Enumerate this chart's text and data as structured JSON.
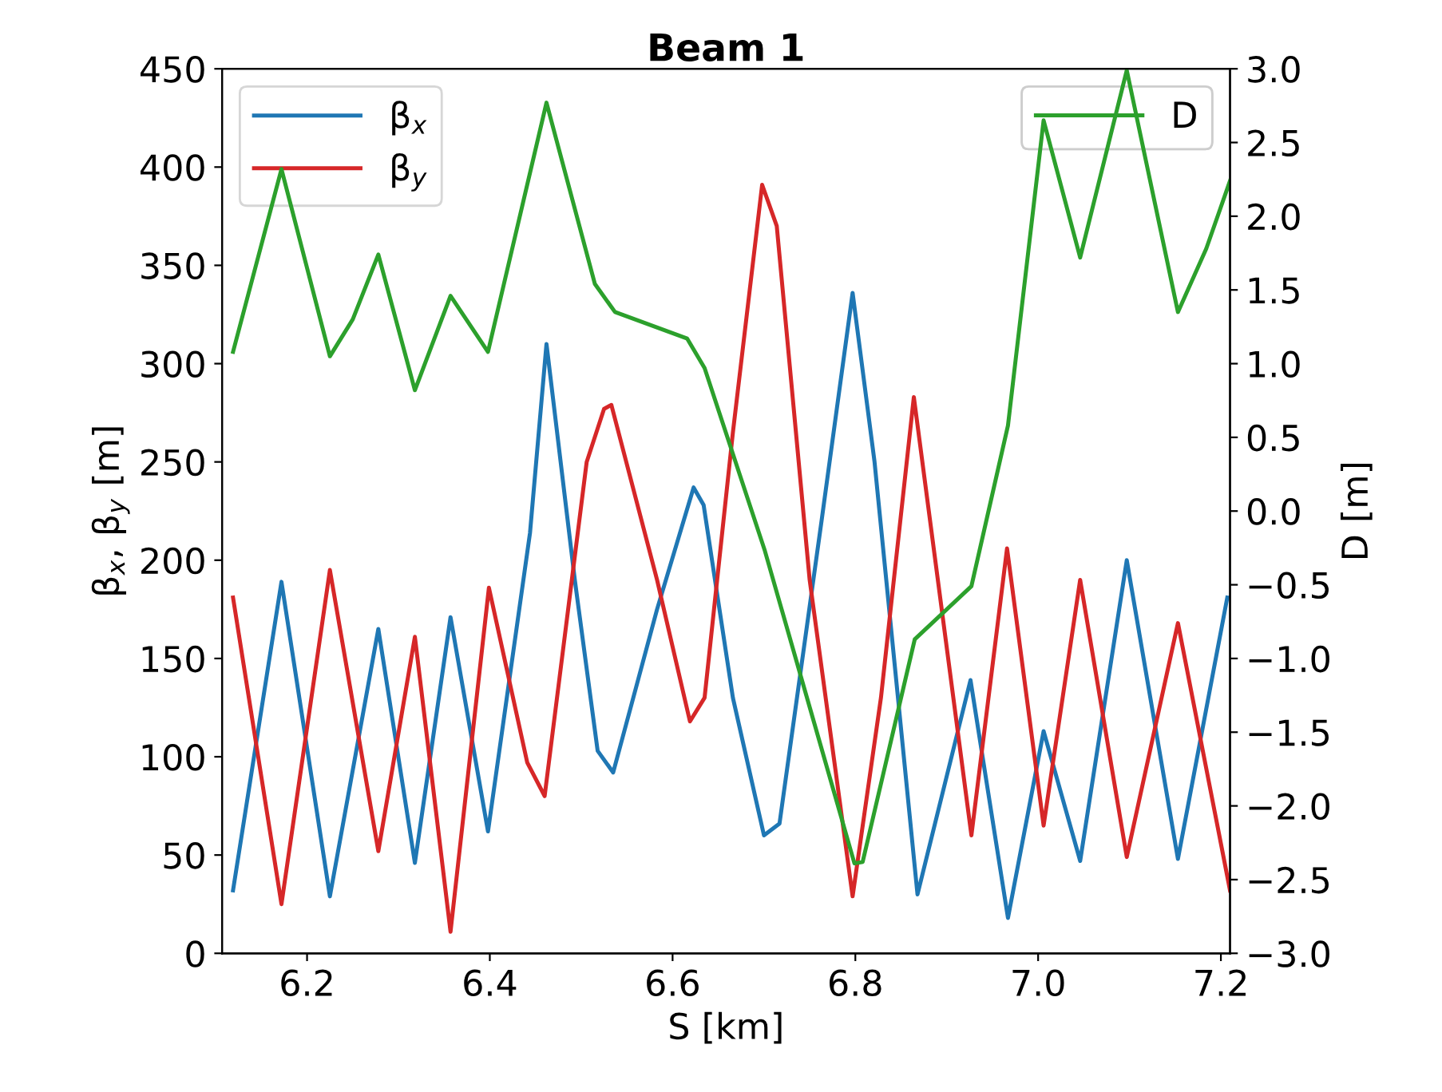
{
  "chart_data": {
    "type": "line",
    "title": "Beam 1",
    "xlabel": "S [km]",
    "ylabel": "β$_{x}$, β$_{y}$ [m]",
    "y2label": "D [m]",
    "xlim": [
      6.107,
      7.21
    ],
    "xticks": [
      {
        "value": 6.2,
        "label": "6.2"
      },
      {
        "value": 6.4,
        "label": "6.4"
      },
      {
        "value": 6.6,
        "label": "6.6"
      },
      {
        "value": 6.8,
        "label": "6.8"
      },
      {
        "value": 7.0,
        "label": "7.0"
      },
      {
        "value": 7.2,
        "label": "7.2"
      }
    ],
    "ylim": [
      0,
      450
    ],
    "yticks": [
      0,
      50,
      100,
      150,
      200,
      250,
      300,
      350,
      400,
      450
    ],
    "y2lim": [
      -3,
      3
    ],
    "y2ticks": [
      {
        "value": -3,
        "label": "−3.0"
      },
      {
        "value": -2.5,
        "label": "−2.5"
      },
      {
        "value": -2,
        "label": "−2.0"
      },
      {
        "value": -1.5,
        "label": "−1.5"
      },
      {
        "value": -1,
        "label": "−1.0"
      },
      {
        "value": -0.5,
        "label": "−0.5"
      },
      {
        "value": 0,
        "label": "0.0"
      },
      {
        "value": 0.5,
        "label": "0.5"
      },
      {
        "value": 1,
        "label": "1.0"
      },
      {
        "value": 1.5,
        "label": "1.5"
      },
      {
        "value": 2,
        "label": "2.0"
      },
      {
        "value": 2.5,
        "label": "2.5"
      },
      {
        "value": 3,
        "label": "3.0"
      }
    ],
    "grid": false,
    "legend": "top",
    "marker": "none",
    "line_style": "solid",
    "series": [
      {
        "name": "β$_{x}$",
        "color": "#1f77b4",
        "x": [
          6.119,
          6.172,
          6.225,
          6.278,
          6.318,
          6.357,
          6.398,
          6.444,
          6.462,
          6.493,
          6.518,
          6.535,
          6.583,
          6.623,
          6.634,
          6.666,
          6.7,
          6.717,
          6.763,
          6.797,
          6.821,
          6.868,
          6.926,
          6.967,
          7.006,
          7.046,
          7.097,
          7.153,
          7.207
        ],
        "values": [
          32,
          189,
          29,
          165,
          46,
          171,
          62,
          214,
          310,
          190,
          103,
          92,
          175,
          237,
          228,
          130,
          60,
          66,
          220,
          336,
          250,
          30,
          139,
          18,
          113,
          47,
          200,
          48,
          181
        ]
      },
      {
        "name": "β$_{y}$",
        "color": "#d62728",
        "x": [
          6.119,
          6.172,
          6.225,
          6.278,
          6.318,
          6.357,
          6.399,
          6.441,
          6.46,
          6.506,
          6.525,
          6.533,
          6.583,
          6.619,
          6.635,
          6.666,
          6.698,
          6.714,
          6.75,
          6.797,
          6.828,
          6.864,
          6.927,
          6.966,
          7.006,
          7.046,
          7.097,
          7.153,
          7.21
        ],
        "values": [
          181,
          25,
          195,
          52,
          161,
          11,
          186,
          97,
          80,
          250,
          277,
          279,
          190,
          118,
          130,
          265,
          391,
          370,
          190,
          29,
          130,
          283,
          60,
          206,
          65,
          190,
          49,
          168,
          32
        ]
      },
      {
        "name": "D",
        "color": "#2ca02c",
        "axis": "y2",
        "x": [
          6.119,
          6.172,
          6.225,
          6.25,
          6.278,
          6.318,
          6.357,
          6.398,
          6.462,
          6.515,
          6.537,
          6.616,
          6.635,
          6.701,
          6.799,
          6.808,
          6.865,
          6.927,
          6.967,
          7.006,
          7.046,
          7.097,
          7.153,
          7.184,
          7.21
        ],
        "values": [
          1.08,
          2.32,
          1.05,
          1.3,
          1.74,
          0.82,
          1.46,
          1.08,
          2.77,
          1.54,
          1.35,
          1.17,
          0.97,
          -0.27,
          -2.39,
          -2.38,
          -0.87,
          -0.51,
          0.58,
          2.65,
          1.72,
          2.99,
          1.35,
          1.78,
          2.24
        ]
      }
    ]
  }
}
